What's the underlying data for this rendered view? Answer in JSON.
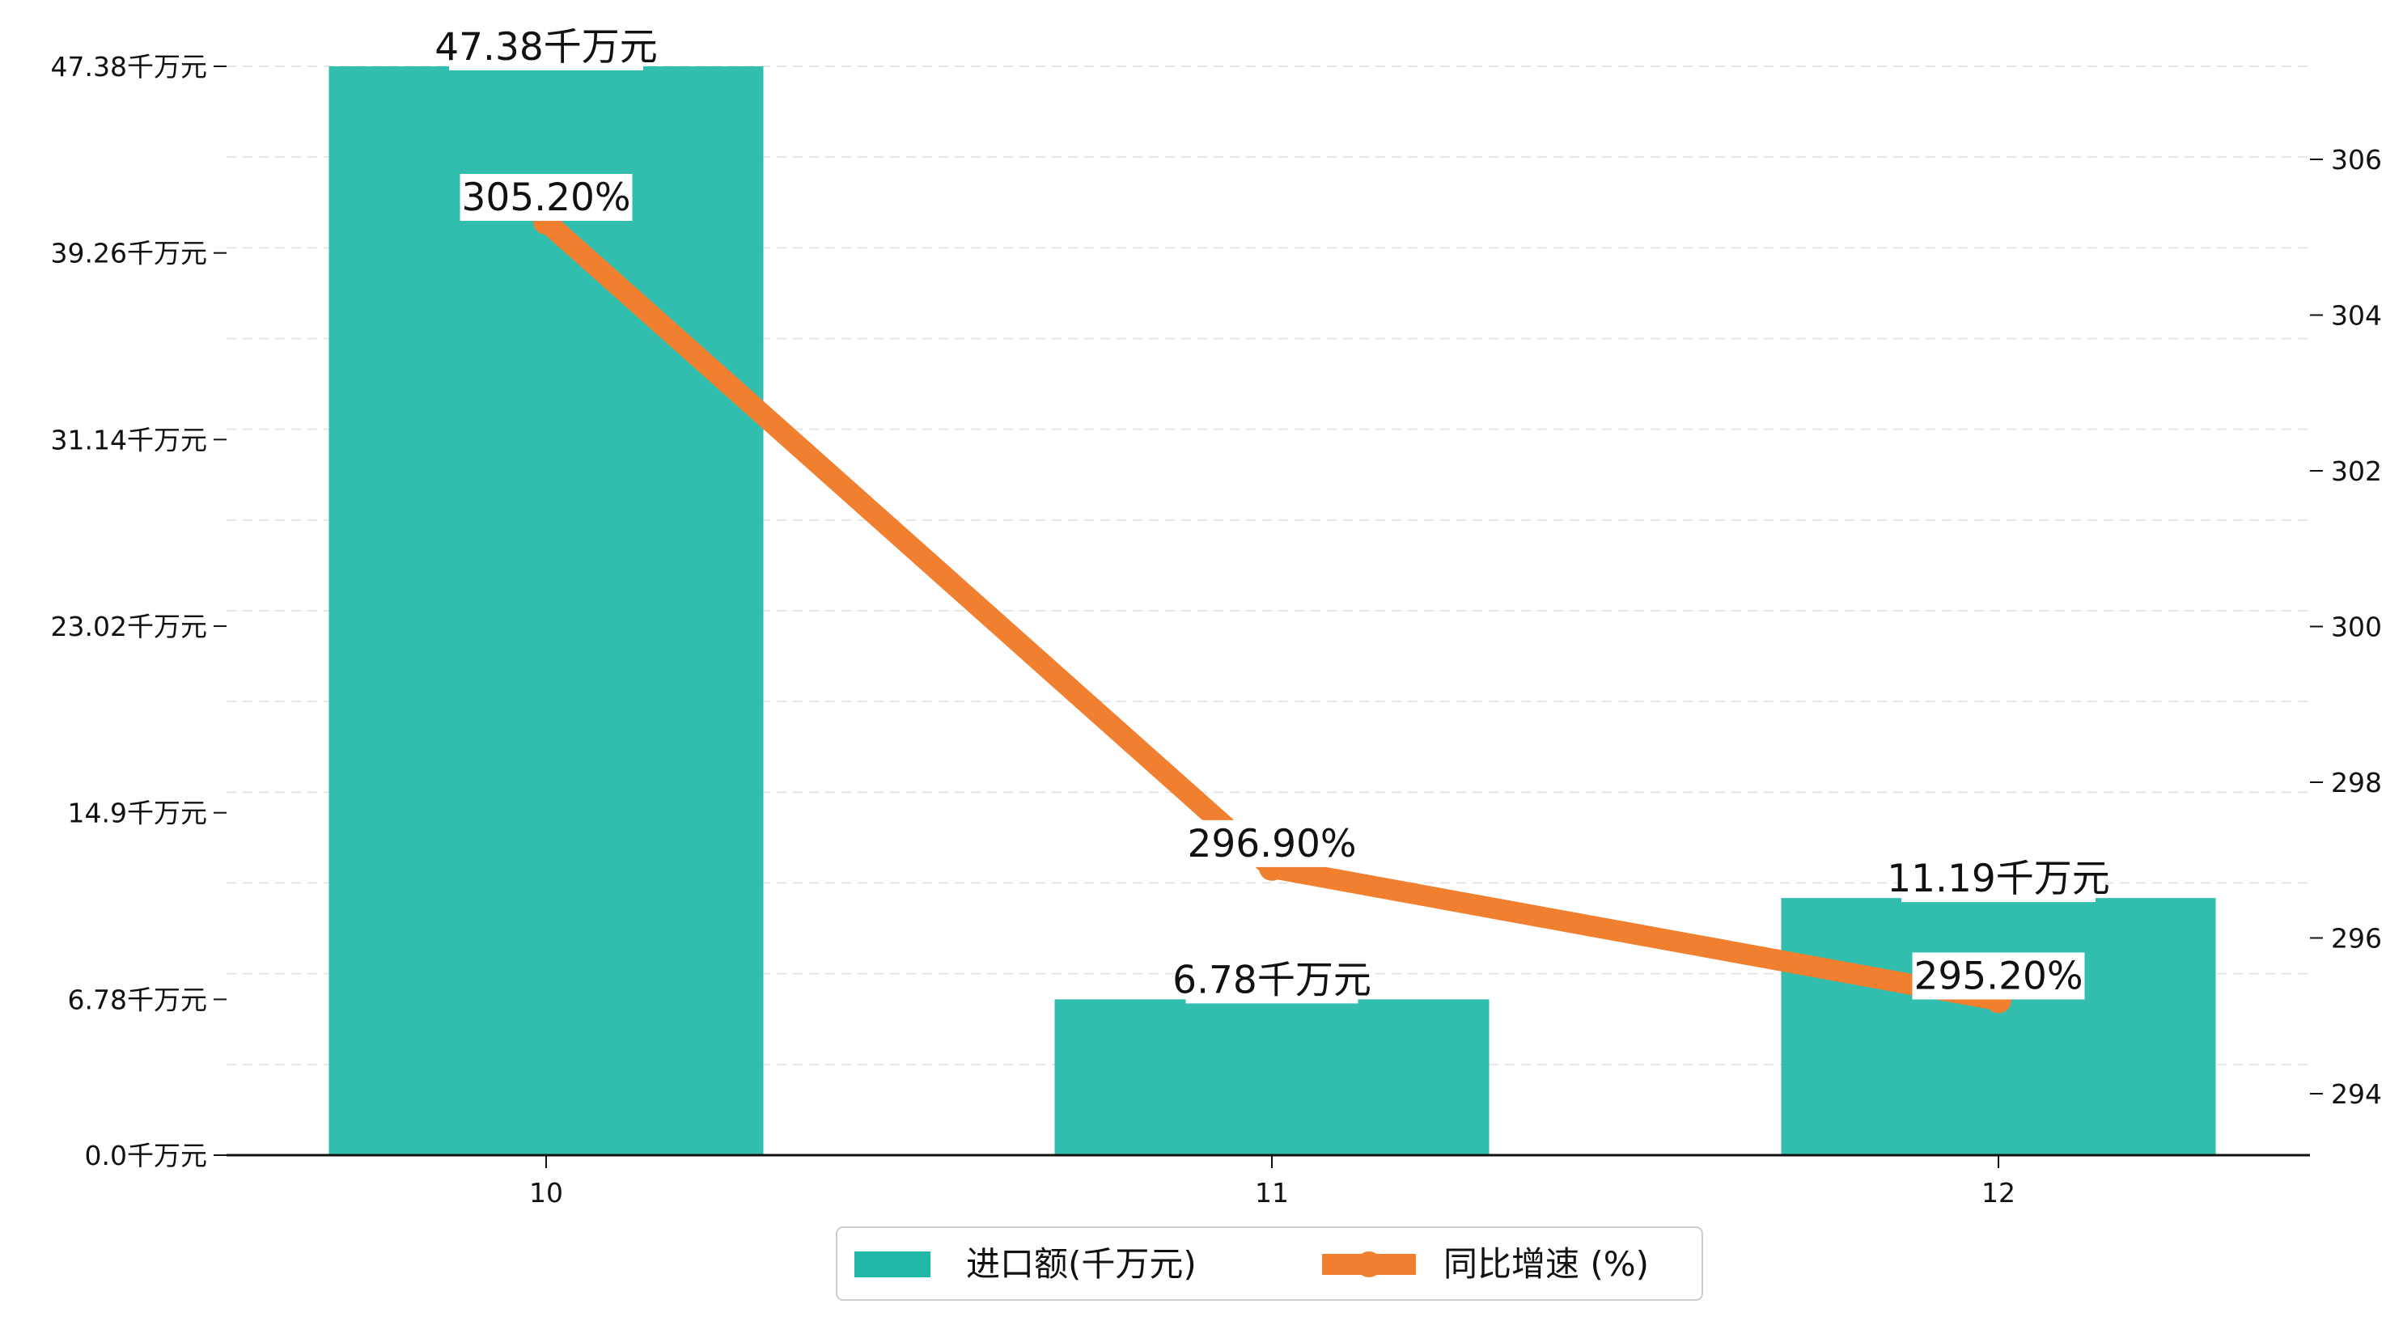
{
  "chart_data": {
    "type": "bar",
    "categories": [
      "10",
      "11",
      "12"
    ],
    "series": [
      {
        "name": "进口额(千万元)",
        "type": "bar",
        "axis": "left",
        "values": [
          47.38,
          6.78,
          11.19
        ],
        "labels": [
          "47.38千万元",
          "6.78千万元",
          "11.19千万元"
        ],
        "color": "#1fb8a8"
      },
      {
        "name": "同比增速 (%)",
        "type": "line",
        "axis": "right",
        "values": [
          305.2,
          296.9,
          295.2
        ],
        "labels": [
          "305.20%",
          "296.90%",
          "295.20%"
        ],
        "color": "#f08030"
      }
    ],
    "y_left": {
      "ticks": [
        0.0,
        6.78,
        14.9,
        23.02,
        31.14,
        39.26,
        47.38
      ],
      "tick_labels": [
        "0.0千万元",
        "6.78千万元",
        "14.9千万元",
        "23.02千万元",
        "31.14千万元",
        "39.26千万元",
        "47.38千万元"
      ],
      "range": [
        0,
        47.38
      ]
    },
    "y_right": {
      "ticks": [
        294,
        296,
        298,
        300,
        302,
        304,
        306
      ],
      "tick_labels": [
        "294",
        "296",
        "298",
        "300",
        "302",
        "304",
        "306"
      ],
      "range": [
        293.2,
        307.2
      ]
    },
    "grid": "horizontal-dashed",
    "legend_position": "bottom-center"
  }
}
